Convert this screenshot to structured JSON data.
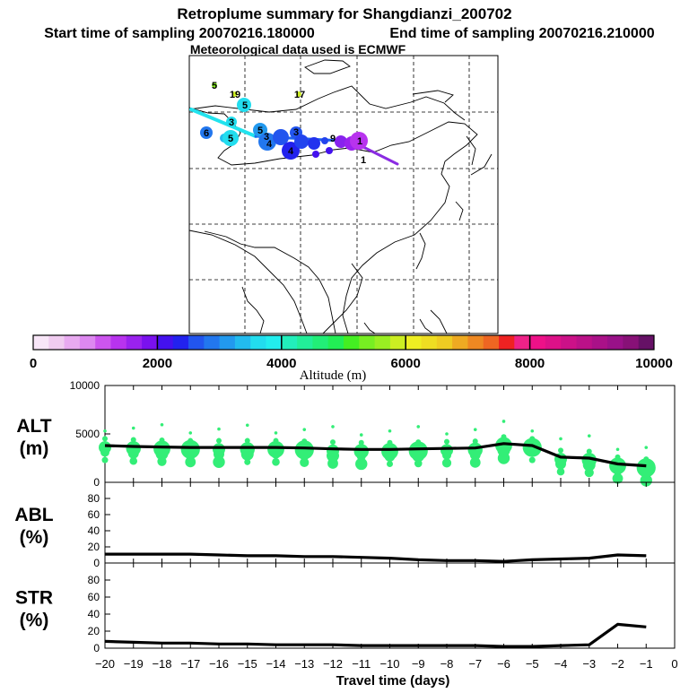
{
  "header": {
    "title": "Retroplume summary for Shangdianzi_200702",
    "start_label": "Start time of sampling 20070216.180000",
    "end_label": "End time of sampling 20070216.210000",
    "met_label": "Meteorological data used is ECMWF"
  },
  "map": {
    "labels": [
      {
        "text": "5",
        "id": "map-label-5a"
      },
      {
        "text": "19",
        "id": "map-label-19"
      },
      {
        "text": "17",
        "id": "map-label-17"
      },
      {
        "text": "5",
        "id": "map-label-5b"
      },
      {
        "text": "3",
        "id": "map-label-3a"
      },
      {
        "text": "6",
        "id": "map-label-6"
      },
      {
        "text": "5",
        "id": "map-label-5c"
      },
      {
        "text": "5",
        "id": "map-label-5d"
      },
      {
        "text": "3",
        "id": "map-label-3b"
      },
      {
        "text": "4",
        "id": "map-label-4a"
      },
      {
        "text": "3",
        "id": "map-label-3c"
      },
      {
        "text": "4",
        "id": "map-label-4b"
      },
      {
        "text": "9",
        "id": "map-label-9"
      },
      {
        "text": "1",
        "id": "map-label-1a"
      },
      {
        "text": "1",
        "id": "map-label-1b"
      }
    ]
  },
  "colorbar": {
    "label": "Altitude (m)",
    "ticks": [
      "0",
      "2000",
      "4000",
      "6000",
      "8000",
      "10000"
    ],
    "colors": [
      "#f8e6f8",
      "#f0ccf0",
      "#e8aaf0",
      "#dd88f0",
      "#cc55ee",
      "#b833ee",
      "#9a22ee",
      "#7a11ee",
      "#4411ee",
      "#2222ee",
      "#2255ee",
      "#2277ee",
      "#2299ee",
      "#22bbee",
      "#22ddee",
      "#22eeee",
      "#22eebb",
      "#22ee99",
      "#22ee77",
      "#22ee55",
      "#44ee22",
      "#77ee22",
      "#99ee22",
      "#ccee22",
      "#eeee22",
      "#eedd22",
      "#eecc22",
      "#eeaa22",
      "#ee8822",
      "#ee6622",
      "#ee2222",
      "#ee2288",
      "#ee1188",
      "#dd1188",
      "#cc1188",
      "#bb1188",
      "#aa1188",
      "#991188",
      "#881177",
      "#661166"
    ]
  },
  "chart_data": [
    {
      "type": "line",
      "id": "alt",
      "title": "ALT",
      "ylabel": "ALT (m)",
      "ylabel_line1": "ALT",
      "ylabel_line2": "(m)",
      "xlabel": "Travel time (days)",
      "x": [
        -20,
        -19,
        -18,
        -17,
        -16,
        -15,
        -14,
        -13,
        -12,
        -11,
        -10,
        -9,
        -8,
        -7,
        -6,
        -5,
        -4,
        -3,
        -2,
        -1
      ],
      "values": [
        3800,
        3700,
        3650,
        3600,
        3600,
        3600,
        3600,
        3550,
        3450,
        3400,
        3400,
        3450,
        3500,
        3550,
        4000,
        3800,
        2600,
        2500,
        1900,
        1700
      ],
      "ylim": [
        0,
        10000
      ],
      "yticks": [
        "0",
        "5000",
        "10000"
      ]
    },
    {
      "type": "line",
      "id": "abl",
      "title": "ABL",
      "ylabel_line1": "ABL",
      "ylabel_line2": "(%)",
      "x": [
        -20,
        -19,
        -18,
        -17,
        -16,
        -15,
        -14,
        -13,
        -12,
        -11,
        -10,
        -9,
        -8,
        -7,
        -6,
        -5,
        -4,
        -3,
        -2,
        -1
      ],
      "values": [
        11,
        11,
        11,
        11,
        10,
        9,
        9,
        8,
        8,
        7,
        6,
        4,
        3,
        3,
        2,
        4,
        5,
        6,
        10,
        9
      ],
      "ylim": [
        0,
        100
      ],
      "yticks": [
        "0",
        "20",
        "40",
        "60",
        "80"
      ]
    },
    {
      "type": "line",
      "id": "str",
      "title": "STR",
      "ylabel_line1": "STR",
      "ylabel_line2": "(%)",
      "x": [
        -20,
        -19,
        -18,
        -17,
        -16,
        -15,
        -14,
        -13,
        -12,
        -11,
        -10,
        -9,
        -8,
        -7,
        -6,
        -5,
        -4,
        -3,
        -2,
        -1
      ],
      "values": [
        8,
        7,
        6,
        6,
        5,
        5,
        4,
        4,
        4,
        3,
        3,
        3,
        3,
        3,
        2,
        2,
        3,
        4,
        28,
        25
      ],
      "ylim": [
        0,
        100
      ],
      "yticks": [
        "0",
        "20",
        "40",
        "60",
        "80"
      ]
    }
  ],
  "xaxis": {
    "ticks": [
      "−20",
      "−19",
      "−18",
      "−17",
      "−16",
      "−15",
      "−14",
      "−13",
      "−12",
      "−11",
      "−10",
      "−9",
      "−8",
      "−7",
      "−6",
      "−5",
      "−4",
      "−3",
      "−2",
      "−1",
      "0"
    ],
    "label": "Travel time (days)"
  }
}
